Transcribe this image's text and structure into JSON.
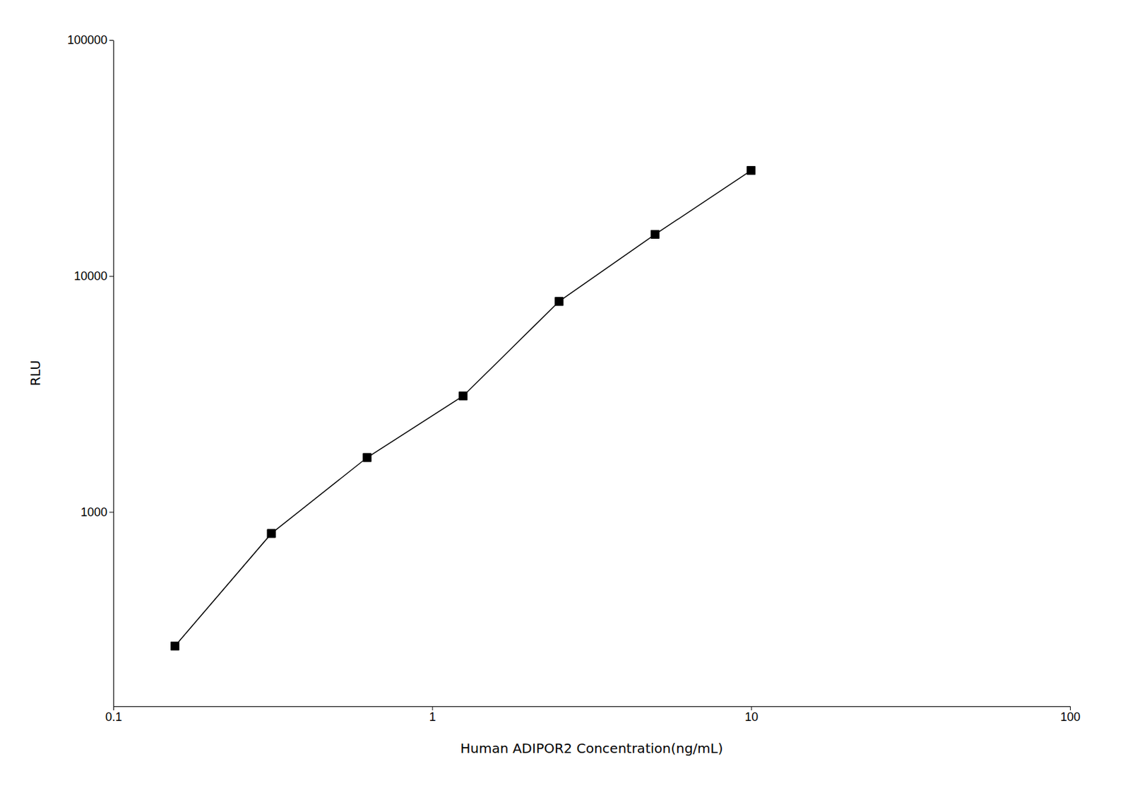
{
  "chart_data": {
    "type": "line",
    "x": [
      0.156,
      0.313,
      0.625,
      1.25,
      2.5,
      5.0,
      10.0
    ],
    "values": [
      270,
      810,
      1700,
      3100,
      7800,
      15000,
      28000
    ],
    "xlabel": "Human ADIPOR2 Concentration(ng/mL)",
    "ylabel": "RLU",
    "xlim": [
      0.1,
      100
    ],
    "ylim": [
      150,
      100000
    ],
    "xticks": [
      0.1,
      1,
      10,
      100
    ],
    "yticks": [
      1000,
      10000,
      100000
    ],
    "log": true,
    "color": "#000000",
    "marker": "square",
    "line_style": "solid"
  }
}
